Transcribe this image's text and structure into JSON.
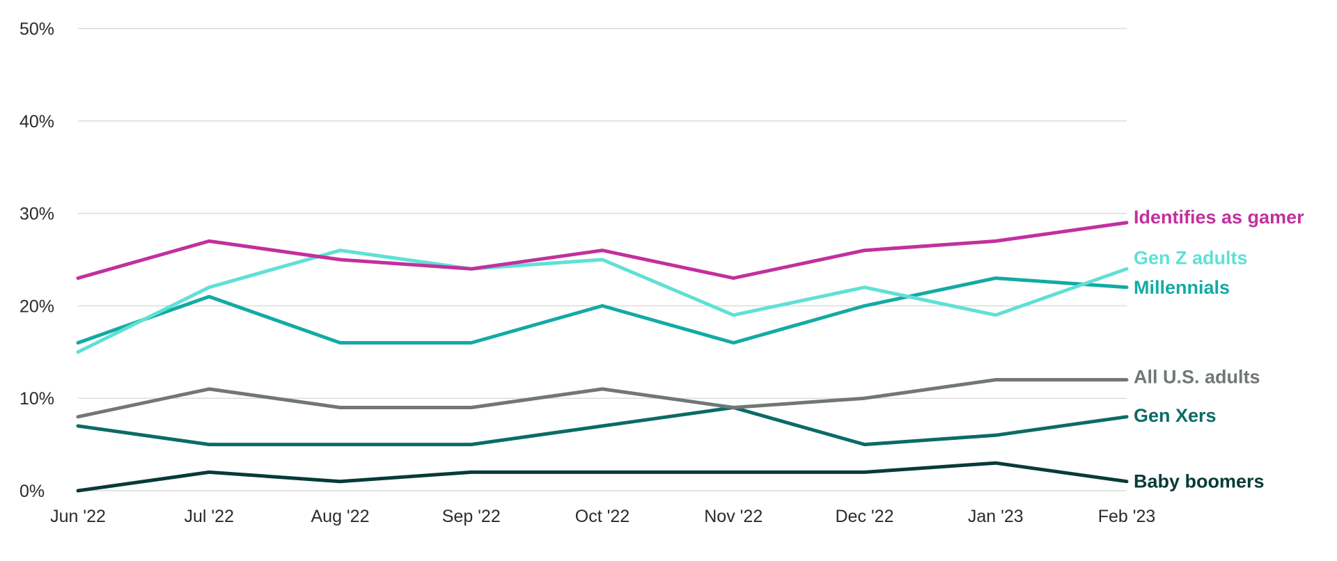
{
  "chart_data": {
    "type": "line",
    "title": "",
    "xlabel": "",
    "ylabel": "",
    "categories": [
      "Jun '22",
      "Jul '22",
      "Aug '22",
      "Sep '22",
      "Oct '22",
      "Nov '22",
      "Dec '22",
      "Jan '23",
      "Feb '23"
    ],
    "ylim": [
      0,
      50
    ],
    "yticks": [
      0,
      10,
      20,
      30,
      40,
      50
    ],
    "ytick_labels": [
      "0%",
      "10%",
      "20%",
      "30%",
      "40%",
      "50%"
    ],
    "grid": true,
    "legend": "inline-right",
    "series": [
      {
        "name": "Identifies as gamer",
        "color": "#c2309e",
        "values": [
          23,
          27,
          25,
          24,
          26,
          23,
          26,
          27,
          29
        ]
      },
      {
        "name": "Gen Z adults",
        "color": "#5fe0d6",
        "values": [
          15,
          22,
          26,
          24,
          25,
          19,
          22,
          19,
          24
        ]
      },
      {
        "name": "Millennials",
        "color": "#13aaa5",
        "values": [
          16,
          21,
          16,
          16,
          20,
          16,
          20,
          23,
          22
        ]
      },
      {
        "name": "All U.S. adults",
        "color": "#717777",
        "values": [
          8,
          11,
          9,
          9,
          11,
          9,
          10,
          12,
          12
        ]
      },
      {
        "name": "Gen Xers",
        "color": "#0b6b66",
        "values": [
          7,
          5,
          5,
          5,
          7,
          9,
          5,
          6,
          8
        ]
      },
      {
        "name": "Baby boomers",
        "color": "#073b37",
        "values": [
          0,
          2,
          1,
          2,
          2,
          2,
          2,
          3,
          1
        ]
      }
    ]
  }
}
